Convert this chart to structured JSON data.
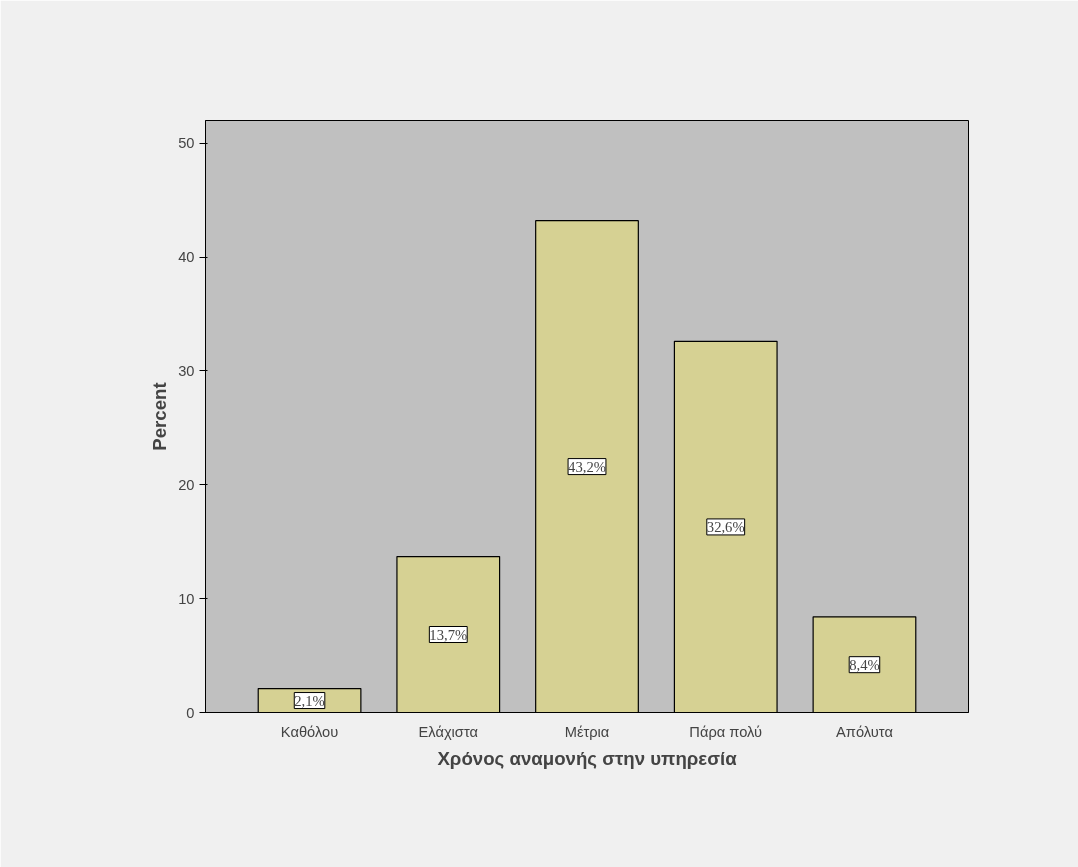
{
  "chart_data": {
    "type": "bar",
    "xlabel": "Χρόνος αναμονής στην υπηρεσία",
    "ylabel": "Percent",
    "categories": [
      "Καθόλου",
      "Ελάχιστα",
      "Μέτρια",
      "Πάρα πολύ",
      "Απόλυτα"
    ],
    "values": [
      2.1,
      13.7,
      43.2,
      32.6,
      8.4
    ],
    "value_labels": [
      "2,1%",
      "13,7%",
      "43,2%",
      "32,6%",
      "8,4%"
    ],
    "color": "#d6d193",
    "ylim": [
      0,
      52
    ],
    "yticks": [
      0,
      10,
      20,
      30,
      40,
      50
    ],
    "grid": false
  }
}
